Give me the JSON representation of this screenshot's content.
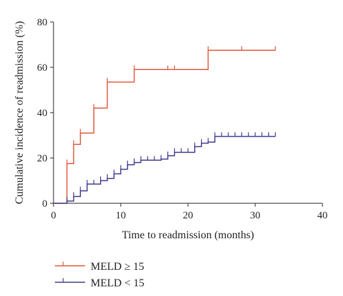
{
  "chart_data": {
    "type": "line",
    "step": true,
    "xlabel": "Time to readmission (months)",
    "ylabel": "Cumulative incidence of readmission (%)",
    "xlim": [
      0,
      40
    ],
    "ylim": [
      0,
      80
    ],
    "xticks": [
      "0",
      "10",
      "20",
      "30",
      "40"
    ],
    "yticks": [
      "0",
      "20",
      "40",
      "60",
      "80"
    ],
    "grid": false,
    "legend_position": "bottom-left",
    "series": [
      {
        "name": "MELD ≥ 15",
        "color": "#e0563a",
        "steps": [
          [
            0,
            0
          ],
          [
            2,
            0
          ],
          [
            2,
            17.5
          ],
          [
            3,
            17.5
          ],
          [
            3,
            26
          ],
          [
            4,
            26
          ],
          [
            4,
            31
          ],
          [
            6,
            31
          ],
          [
            6,
            42
          ],
          [
            8,
            42
          ],
          [
            8,
            53.5
          ],
          [
            12,
            53.5
          ],
          [
            12,
            59
          ],
          [
            23,
            59
          ],
          [
            23,
            67.5
          ],
          [
            33,
            67.5
          ]
        ],
        "censor": [
          2,
          3,
          4,
          6,
          8,
          12,
          17,
          18,
          23,
          28,
          33
        ]
      },
      {
        "name": "MELD < 15",
        "color": "#3d3a8c",
        "steps": [
          [
            0,
            0
          ],
          [
            2,
            0
          ],
          [
            2,
            1
          ],
          [
            3,
            1
          ],
          [
            3,
            3
          ],
          [
            4,
            3
          ],
          [
            4,
            5.5
          ],
          [
            5,
            5.5
          ],
          [
            5,
            8.5
          ],
          [
            7,
            8.5
          ],
          [
            7,
            10
          ],
          [
            8,
            10
          ],
          [
            8,
            11
          ],
          [
            9,
            11
          ],
          [
            9,
            13
          ],
          [
            10,
            13
          ],
          [
            10,
            15
          ],
          [
            11,
            15
          ],
          [
            11,
            17
          ],
          [
            12,
            17
          ],
          [
            12,
            18
          ],
          [
            13,
            18
          ],
          [
            13,
            19
          ],
          [
            16,
            19
          ],
          [
            16,
            19.5
          ],
          [
            17,
            19.5
          ],
          [
            17,
            21
          ],
          [
            18,
            21
          ],
          [
            18,
            22.5
          ],
          [
            21,
            22.5
          ],
          [
            21,
            25
          ],
          [
            22,
            25
          ],
          [
            22,
            26.5
          ],
          [
            23,
            26.5
          ],
          [
            23,
            27
          ],
          [
            24,
            27
          ],
          [
            24,
            29.5
          ],
          [
            33,
            29.5
          ]
        ],
        "censor": [
          2,
          3,
          4,
          5,
          6,
          7,
          8,
          9,
          10,
          11,
          12,
          13,
          14,
          15,
          16,
          17,
          18,
          19,
          20,
          21,
          22,
          23,
          24,
          25,
          26,
          27,
          28,
          29,
          30,
          31,
          32,
          33
        ]
      }
    ]
  }
}
